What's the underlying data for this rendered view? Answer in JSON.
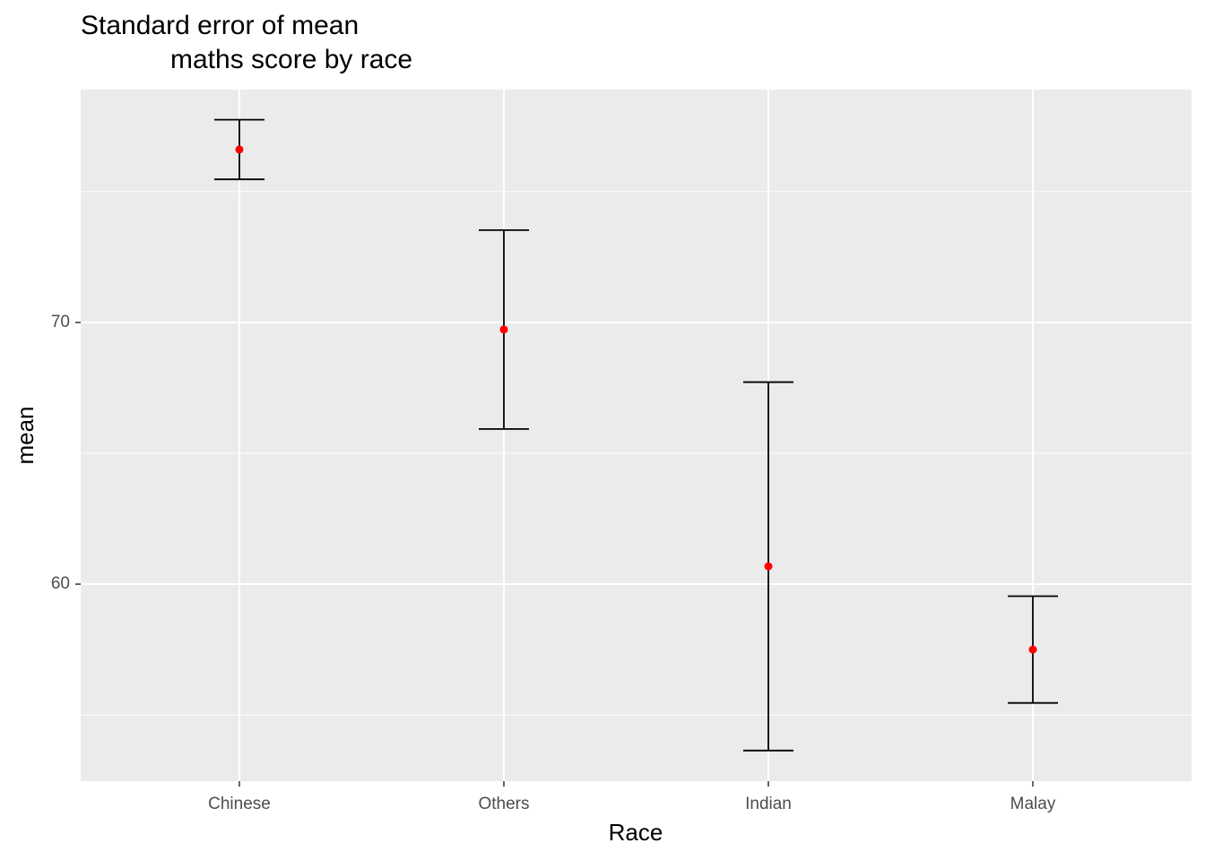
{
  "chart_data": {
    "type": "errorbar",
    "title": [
      "Standard error of mean",
      "maths score by race"
    ],
    "x_label": "Race",
    "y_label": "mean",
    "categories": [
      "Chinese",
      "Others",
      "Indian",
      "Malay"
    ],
    "values": [
      76.61,
      69.73,
      60.68,
      57.5
    ],
    "errors": [
      1.14,
      3.8,
      7.04,
      2.04
    ],
    "color": "#ff0000",
    "error_color": "#000000",
    "ylim": [
      52.47,
      78.9
    ],
    "yticks": [
      60,
      70
    ],
    "y_minor_ticks": [
      55,
      65,
      75
    ],
    "grid": true
  }
}
